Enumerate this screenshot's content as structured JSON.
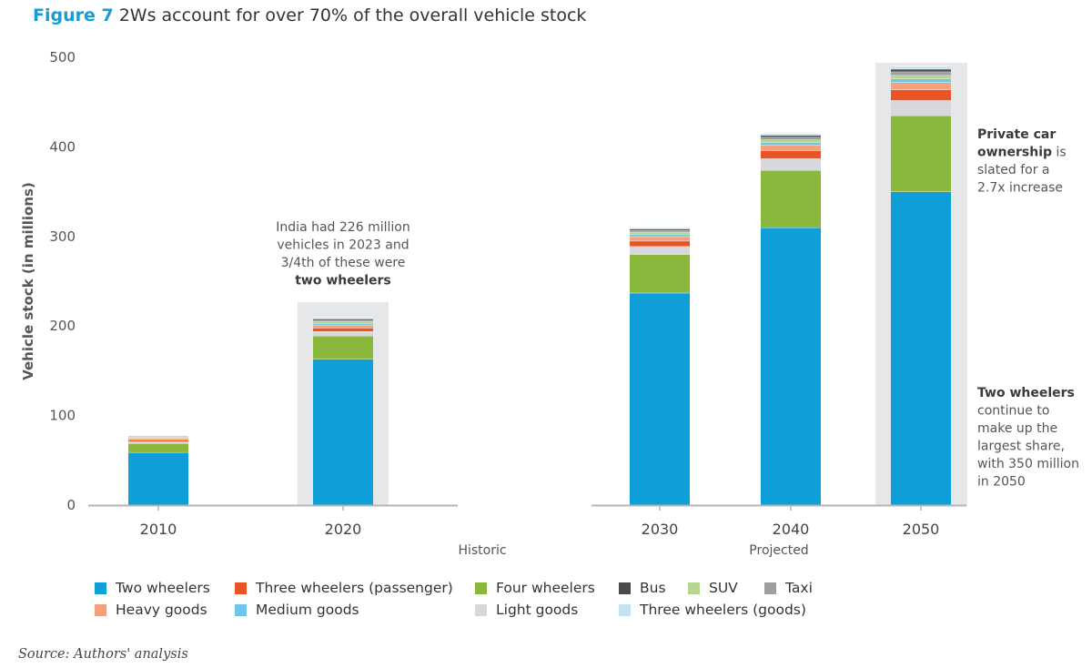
{
  "figure": {
    "number": "Figure 7",
    "title": "2Ws account for over 70% of the overall vehicle stock"
  },
  "source": "Source: Authors' analysis",
  "chart_data": {
    "type": "bar",
    "stacked": true,
    "ylabel": "Vehicle stock (in millions)",
    "ylim": [
      0,
      500
    ],
    "yticks": [
      0,
      100,
      200,
      300,
      400,
      500
    ],
    "categories": [
      "2010",
      "2020",
      "2030",
      "2040",
      "2050"
    ],
    "groups": [
      {
        "name": "Historic",
        "categories": [
          "2010",
          "2020"
        ]
      },
      {
        "name": "Projected",
        "categories": [
          "2030",
          "2040",
          "2050"
        ]
      }
    ],
    "highlighted": [
      "2020",
      "2050"
    ],
    "series": [
      {
        "name": "Two wheelers",
        "color": "#0f9fd8",
        "values": [
          59,
          163,
          237,
          310,
          350
        ]
      },
      {
        "name": "Four wheelers",
        "color": "#8ab83d",
        "values": [
          10,
          26,
          43,
          64,
          85
        ]
      },
      {
        "name": "Light goods",
        "color": "#d7d8dd",
        "values": [
          2,
          5,
          9,
          13,
          17
        ]
      },
      {
        "name": "Three wheelers (passenger)",
        "color": "#ea5424",
        "values": [
          2,
          4,
          6,
          9,
          12
        ]
      },
      {
        "name": "Heavy goods",
        "color": "#f4a07c",
        "values": [
          1.5,
          3,
          5,
          6,
          8
        ]
      },
      {
        "name": "Medium goods",
        "color": "#6cc6ea",
        "values": [
          0.8,
          2,
          2.5,
          3,
          4
        ]
      },
      {
        "name": "SUV",
        "color": "#b4d68e",
        "values": [
          0.7,
          2,
          2.5,
          3,
          4
        ]
      },
      {
        "name": "Taxi",
        "color": "#9e9e9e",
        "values": [
          0.6,
          1.5,
          2,
          3,
          4
        ]
      },
      {
        "name": "Bus",
        "color": "#4a4a4a",
        "values": [
          0.6,
          1.5,
          1.5,
          2,
          3
        ]
      },
      {
        "name": "Three wheelers (goods)",
        "color": "#c3e3f4",
        "values": [
          0.5,
          1.5,
          1.5,
          2,
          3
        ]
      }
    ],
    "annotations": [
      {
        "lines": [
          [
            {
              "text": "India had 226 million",
              "bold": false
            }
          ],
          [
            {
              "text": "vehicles in 2023 and",
              "bold": false
            }
          ],
          [
            {
              "text": "3/4th of these were",
              "bold": false
            }
          ],
          [
            {
              "text": "two wheelers",
              "bold": true
            }
          ]
        ]
      },
      {
        "lines": [
          [
            {
              "text": "Private car",
              "bold": true
            }
          ],
          [
            {
              "text": "ownership",
              "bold": true
            },
            {
              "text": " is",
              "bold": false
            }
          ],
          [
            {
              "text": "slated for a",
              "bold": false
            }
          ],
          [
            {
              "text": "2.7x increase",
              "bold": false
            }
          ]
        ]
      },
      {
        "lines": [
          [
            {
              "text": "Two wheelers",
              "bold": true
            }
          ],
          [
            {
              "text": "continue to",
              "bold": false
            }
          ],
          [
            {
              "text": "make up the",
              "bold": false
            }
          ],
          [
            {
              "text": "largest share,",
              "bold": false
            }
          ],
          [
            {
              "text": "with 350 million",
              "bold": false
            }
          ],
          [
            {
              "text": "in 2050",
              "bold": false
            }
          ]
        ]
      }
    ]
  },
  "legend": {
    "rows": [
      [
        "Two wheelers",
        "Three wheelers (passenger)",
        "Four wheelers",
        "Bus",
        "SUV",
        "Taxi"
      ],
      [
        "Heavy goods",
        "Medium goods",
        null,
        "Light goods",
        "Three wheelers (goods)",
        null
      ]
    ]
  }
}
